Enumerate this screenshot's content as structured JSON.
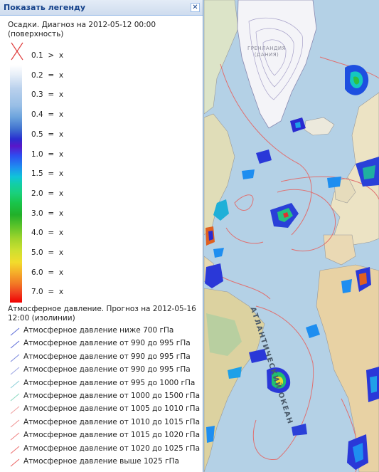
{
  "legend": {
    "title": "Показать легенду",
    "close_glyph": "✕",
    "precip_title_line1": "Осадки. Диагноз на 2012-05-12 00:00",
    "precip_title_line2": "(поверхность)",
    "scale": [
      {
        "value": "0.1",
        "op": ">",
        "unit": "x"
      },
      {
        "value": "0.2",
        "op": "=",
        "unit": "x"
      },
      {
        "value": "0.3",
        "op": "=",
        "unit": "x"
      },
      {
        "value": "0.4",
        "op": "=",
        "unit": "x"
      },
      {
        "value": "0.5",
        "op": "=",
        "unit": "x"
      },
      {
        "value": "1.0",
        "op": "=",
        "unit": "x"
      },
      {
        "value": "1.5",
        "op": "=",
        "unit": "x"
      },
      {
        "value": "2.0",
        "op": "=",
        "unit": "x"
      },
      {
        "value": "3.0",
        "op": "=",
        "unit": "x"
      },
      {
        "value": "4.0",
        "op": "=",
        "unit": "x"
      },
      {
        "value": "5.0",
        "op": "=",
        "unit": "x"
      },
      {
        "value": "6.0",
        "op": "=",
        "unit": "x"
      },
      {
        "value": "7.0",
        "op": "=",
        "unit": "x"
      }
    ],
    "pressure_title_line1": "Атмосферное давление. Прогноз на 2012-05-16",
    "pressure_title_line2": "12:00 (изолинии)",
    "isolines": [
      {
        "label": "Атмосферное давление ниже 700 гПа",
        "color": "#5a6ad8"
      },
      {
        "label": "Атмосферное давление от 990 до 995 гПа",
        "color": "#5a6ad8"
      },
      {
        "label": "Атмосферное давление от 990 до 995 гПа",
        "color": "#7a86dc"
      },
      {
        "label": "Атмосферное давление от 990 до 995 гПа",
        "color": "#9aa4e4"
      },
      {
        "label": "Атмосферное давление от 995 до 1000 гПа",
        "color": "#8acfd8"
      },
      {
        "label": "Атмосферное давление от 1000 до 1500 гПа",
        "color": "#8ad8c0"
      },
      {
        "label": "Атмосферное давление от 1005 до 1010 гПа",
        "color": "#f0a0a0"
      },
      {
        "label": "Атмосферное давление от 1010 до 1015 гПа",
        "color": "#f09090"
      },
      {
        "label": "Атмосферное давление от 1015 до 1020 гПа",
        "color": "#ee8080"
      },
      {
        "label": "Атмосферное давление от 1020 до 1025 гПа",
        "color": "#ec7070"
      },
      {
        "label": "Атмосферное давление выше 1025 гПа",
        "color": "#ea6060"
      }
    ]
  },
  "map": {
    "greenland_label": "ГРЕНЛАНДИЯ (ДАНИЯ)",
    "ocean_label": "АТЛАНТИЧЕСКИЙ ОКЕАН"
  }
}
